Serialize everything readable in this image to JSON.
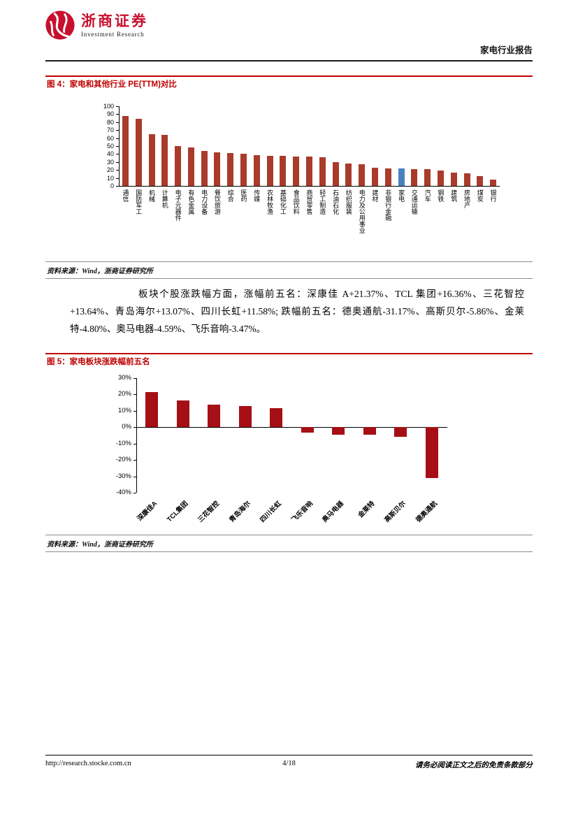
{
  "header": {
    "brand_cn": "浙商证券",
    "brand_en": "Investment Research",
    "report_label": "家电行业报告",
    "brand_color": "#c8102e"
  },
  "figure4": {
    "title": "图 4：家电和其他行业 PE(TTM)对比",
    "source": "资料来源：Wind，浙商证券研究所"
  },
  "body_paragraph": "板块个股涨跌幅方面，涨幅前五名：深康佳 A+21.37%、TCL 集团+16.36%、三花智控+13.64%、青岛海尔+13.07%、四川长虹+11.58%; 跌幅前五名：德奥通航-31.17%、高斯贝尔-5.86%、金莱特-4.80%、奥马电器-4.59%、飞乐音响-3.47%。",
  "figure5": {
    "title": "图 5：家电板块涨跌幅前五名",
    "source": "资料来源：Wind，浙商证券研究所"
  },
  "footer": {
    "url": "http://research.stocke.com.cn",
    "page_number": "4/18",
    "disclaimer": "请务必阅读正文之后的免责条款部分"
  },
  "accent_color": "#c00000",
  "chart_data": [
    {
      "type": "bar",
      "title": "家电和其他行业 PE(TTM)对比",
      "categories": [
        "通信",
        "国防军工",
        "机械",
        "计算机",
        "电子元器件",
        "有色金属",
        "电力设备",
        "餐饮旅游",
        "综合",
        "医药",
        "传媒",
        "农林牧渔",
        "基础化工",
        "食品饮料",
        "商贸零售",
        "轻工制造",
        "石油石化",
        "纺织服装",
        "电力及公用事业",
        "建材",
        "非银行金融",
        "家电",
        "交通运输",
        "汽车",
        "钢铁",
        "建筑",
        "房地产",
        "煤炭",
        "银行"
      ],
      "values": [
        88,
        84,
        65,
        64,
        50,
        48,
        44,
        42,
        41,
        40,
        39,
        38,
        38,
        37,
        37,
        36,
        30,
        28,
        27,
        23,
        22,
        22,
        21,
        21,
        19,
        17,
        16,
        12,
        8
      ],
      "ylim": [
        0,
        100
      ],
      "ytick_step": 10,
      "grid": false,
      "legend": "none",
      "bar_color": "#a93b2b",
      "highlight_category": "家电",
      "highlight_color": "#4c7fbe",
      "xlabel": "",
      "ylabel": ""
    },
    {
      "type": "bar",
      "title": "家电板块涨跌幅前五名",
      "categories": [
        "深康佳A",
        "TCL集团",
        "三花智控",
        "青岛海尔",
        "四川长虹",
        "飞乐音响",
        "奥马电器",
        "金莱特",
        "高斯贝尔",
        "德奥通航"
      ],
      "values": [
        21.37,
        16.36,
        13.64,
        13.07,
        11.58,
        -3.47,
        -4.59,
        -4.8,
        -5.86,
        -31.17
      ],
      "unit": "%",
      "percent": true,
      "ylim": [
        -40,
        30
      ],
      "ytick_step": 10,
      "grid": false,
      "legend": "none",
      "bar_color": "#a50f15",
      "xlabel": "",
      "ylabel": ""
    }
  ]
}
